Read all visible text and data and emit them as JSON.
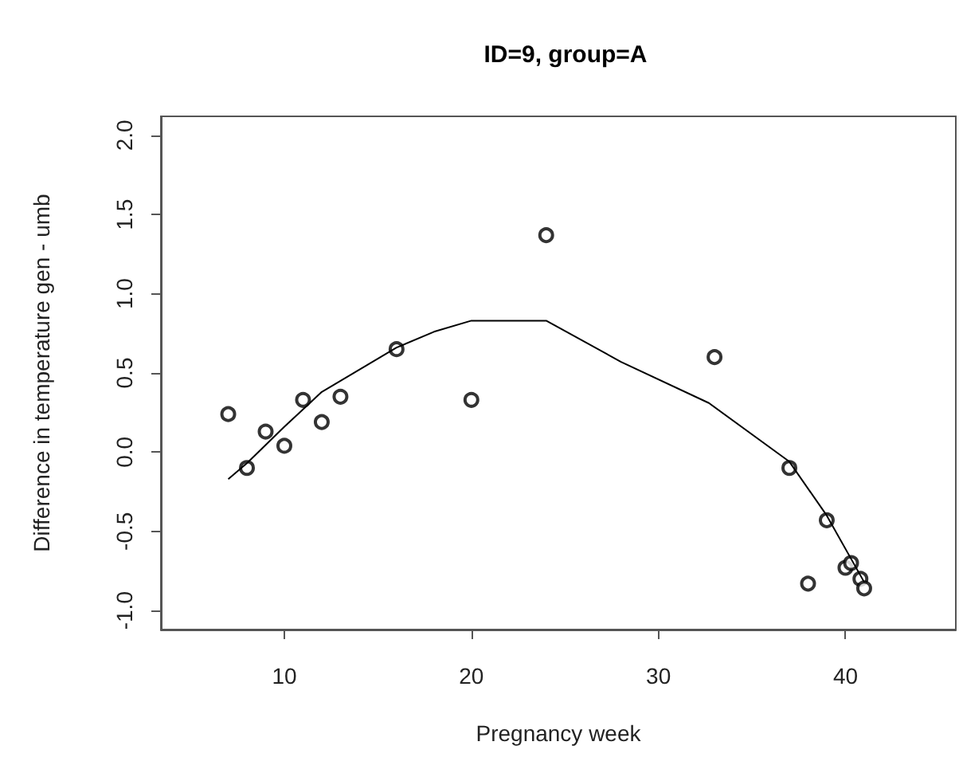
{
  "chart_data": {
    "type": "scatter",
    "title": "ID=9, group=A",
    "xlabel": "Pregnancy week",
    "ylabel": "Difference in temperature gen - umb",
    "xlim": [
      3.4,
      45.9
    ],
    "xticks": [
      10,
      20,
      30,
      40
    ],
    "ylim": [
      -1.12,
      2.12
    ],
    "yticks": [
      {
        "value": -1,
        "label": "-1.0"
      },
      -0.5,
      {
        "value": 0,
        "label": "0.0"
      },
      0.5,
      {
        "value": 1,
        "label": "1.0"
      },
      1.5,
      {
        "value": 2,
        "label": "2.0"
      }
    ],
    "grid": false,
    "marker": "circle",
    "series": [
      {
        "color": "#000000",
        "x": [
          7,
          8,
          9,
          10,
          11,
          12,
          13,
          16,
          20,
          24,
          33,
          37,
          38,
          39,
          40,
          40.3,
          40.8,
          41
        ],
        "values": [
          0.24,
          -0.1,
          0.13,
          0.04,
          0.33,
          0.19,
          0.35,
          0.65,
          0.33,
          1.37,
          0.6,
          -0.1,
          -0.83,
          -0.43,
          -0.73,
          -0.7,
          -0.8,
          -0.86
        ]
      },
      {
        "type": "line",
        "color": "#000000",
        "marker": "none",
        "line_style": "solid",
        "x": [
          7,
          8,
          10,
          12,
          16,
          18,
          20,
          24,
          28,
          32.7,
          37,
          39,
          41
        ],
        "values": [
          -0.17,
          -0.07,
          0.16,
          0.38,
          0.66,
          0.76,
          0.83,
          0.83,
          0.57,
          0.31,
          -0.06,
          -0.4,
          -0.82
        ]
      }
    ]
  }
}
